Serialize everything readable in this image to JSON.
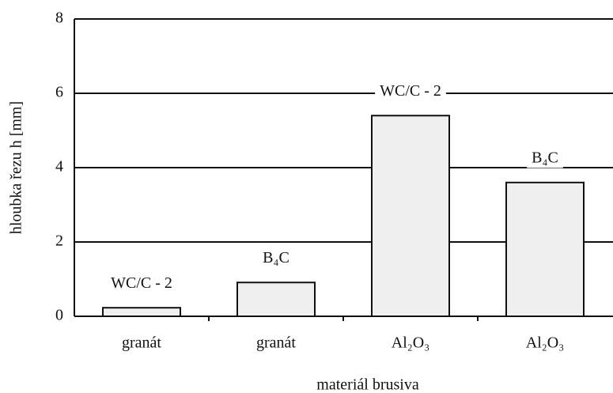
{
  "chart_data": {
    "type": "bar",
    "x_label": "materiál brusiva",
    "y_label": "hloubka řezu h [mm]",
    "categories": [
      "granát",
      "granát",
      "Al₂O₃",
      "Al₂O₃"
    ],
    "values": [
      0.23,
      0.91,
      5.4,
      3.6
    ],
    "annotations": [
      "WC/C - 2",
      "B₄C",
      "WC/C - 2",
      "B₄C"
    ],
    "color": "#efefef",
    "ylim": [
      0,
      8
    ],
    "yticks": [
      0,
      2,
      4,
      6,
      8
    ],
    "grid": true
  }
}
